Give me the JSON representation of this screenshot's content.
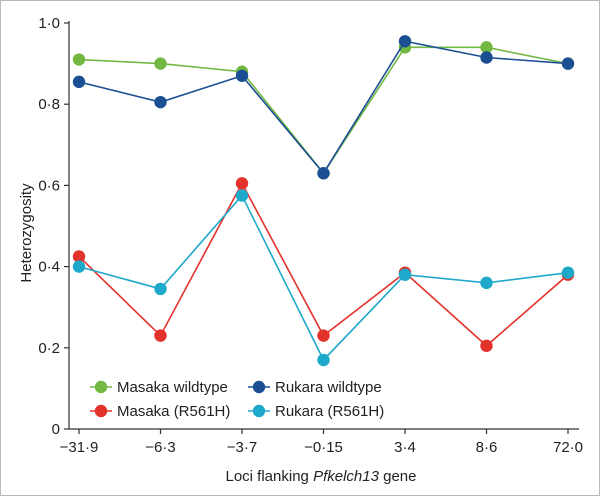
{
  "chart_data": {
    "type": "line",
    "title": "",
    "ylabel": "Heterozygosity",
    "xlabel_prefix": "Loci flanking ",
    "xlabel_gene": "Pfkelch13",
    "xlabel_suffix": " gene",
    "categories": [
      "−31·9",
      "−6·3",
      "−3·7",
      "−0·15",
      "3·4",
      "8·6",
      "72·0"
    ],
    "ylim": [
      0,
      1.0
    ],
    "yticks": [
      0,
      0.2,
      0.4,
      0.6,
      0.8,
      1.0
    ],
    "ytick_labels": [
      "0",
      "0·2",
      "0·4",
      "0·6",
      "0·8",
      "1·0"
    ],
    "series": [
      {
        "name": "Masaka wildtype",
        "color": "#72b843",
        "values": [
          0.91,
          0.9,
          0.88,
          0.63,
          0.94,
          0.94,
          0.9
        ]
      },
      {
        "name": "Rukara wildtype",
        "color": "#1b4f93",
        "values": [
          0.855,
          0.805,
          0.87,
          0.63,
          0.955,
          0.915,
          0.9
        ]
      },
      {
        "name": "Masaka (R561H)",
        "color": "#e3322b",
        "values": [
          0.425,
          0.23,
          0.605,
          0.23,
          0.385,
          0.205,
          0.38
        ]
      },
      {
        "name": "Rukara (R561H)",
        "color": "#1ea8c9",
        "values": [
          0.4,
          0.345,
          0.575,
          0.17,
          0.38,
          0.36,
          0.385
        ]
      }
    ],
    "legend_position": "bottom-left"
  }
}
